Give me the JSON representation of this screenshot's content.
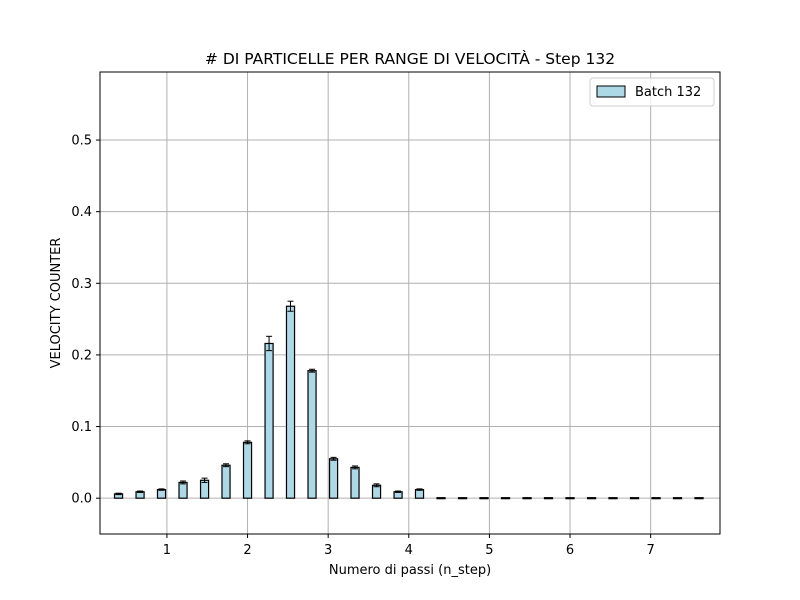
{
  "chart_data": {
    "type": "bar",
    "title": "# DI PARTICELLE PER RANGE DI VELOCITÀ - Step 132",
    "xlabel": "Numero di passi (n_step)",
    "ylabel": "VELOCITY COUNTER",
    "xlim": [
      0.17,
      7.86
    ],
    "ylim": [
      -0.05,
      0.595
    ],
    "xticks": [
      1,
      2,
      3,
      4,
      5,
      6,
      7
    ],
    "yticks": [
      0.0,
      0.1,
      0.2,
      0.3,
      0.4,
      0.5
    ],
    "ytick_labels": [
      "0.0",
      "0.1",
      "0.2",
      "0.3",
      "0.4",
      "0.5"
    ],
    "grid": true,
    "legend_position": "upper right",
    "bar_width": 0.1,
    "colors": {
      "bar_fill": "#add8e6",
      "bar_edge": "#000000",
      "grid": "#b0b0b0"
    },
    "series": [
      {
        "name": "Batch 132",
        "x": [
          0.4,
          0.667,
          0.933,
          1.2,
          1.467,
          1.733,
          2.0,
          2.267,
          2.533,
          2.8,
          3.067,
          3.333,
          3.6,
          3.867,
          4.133,
          4.4,
          4.667,
          4.933,
          5.2,
          5.467,
          5.733,
          6.0,
          6.267,
          6.533,
          6.8,
          7.067,
          7.333,
          7.6
        ],
        "values": [
          0.006,
          0.009,
          0.012,
          0.022,
          0.025,
          0.046,
          0.078,
          0.216,
          0.268,
          0.178,
          0.055,
          0.043,
          0.018,
          0.009,
          0.012,
          0,
          0,
          0,
          0,
          0,
          0,
          0,
          0,
          0,
          0,
          0,
          0,
          0
        ],
        "errors": [
          0.001,
          0.001,
          0.001,
          0.002,
          0.003,
          0.002,
          0.002,
          0.01,
          0.007,
          0.002,
          0.002,
          0.002,
          0.002,
          0.001,
          0.001,
          0,
          0,
          0,
          0,
          0,
          0,
          0,
          0,
          0,
          0,
          0,
          0,
          0
        ]
      }
    ]
  }
}
